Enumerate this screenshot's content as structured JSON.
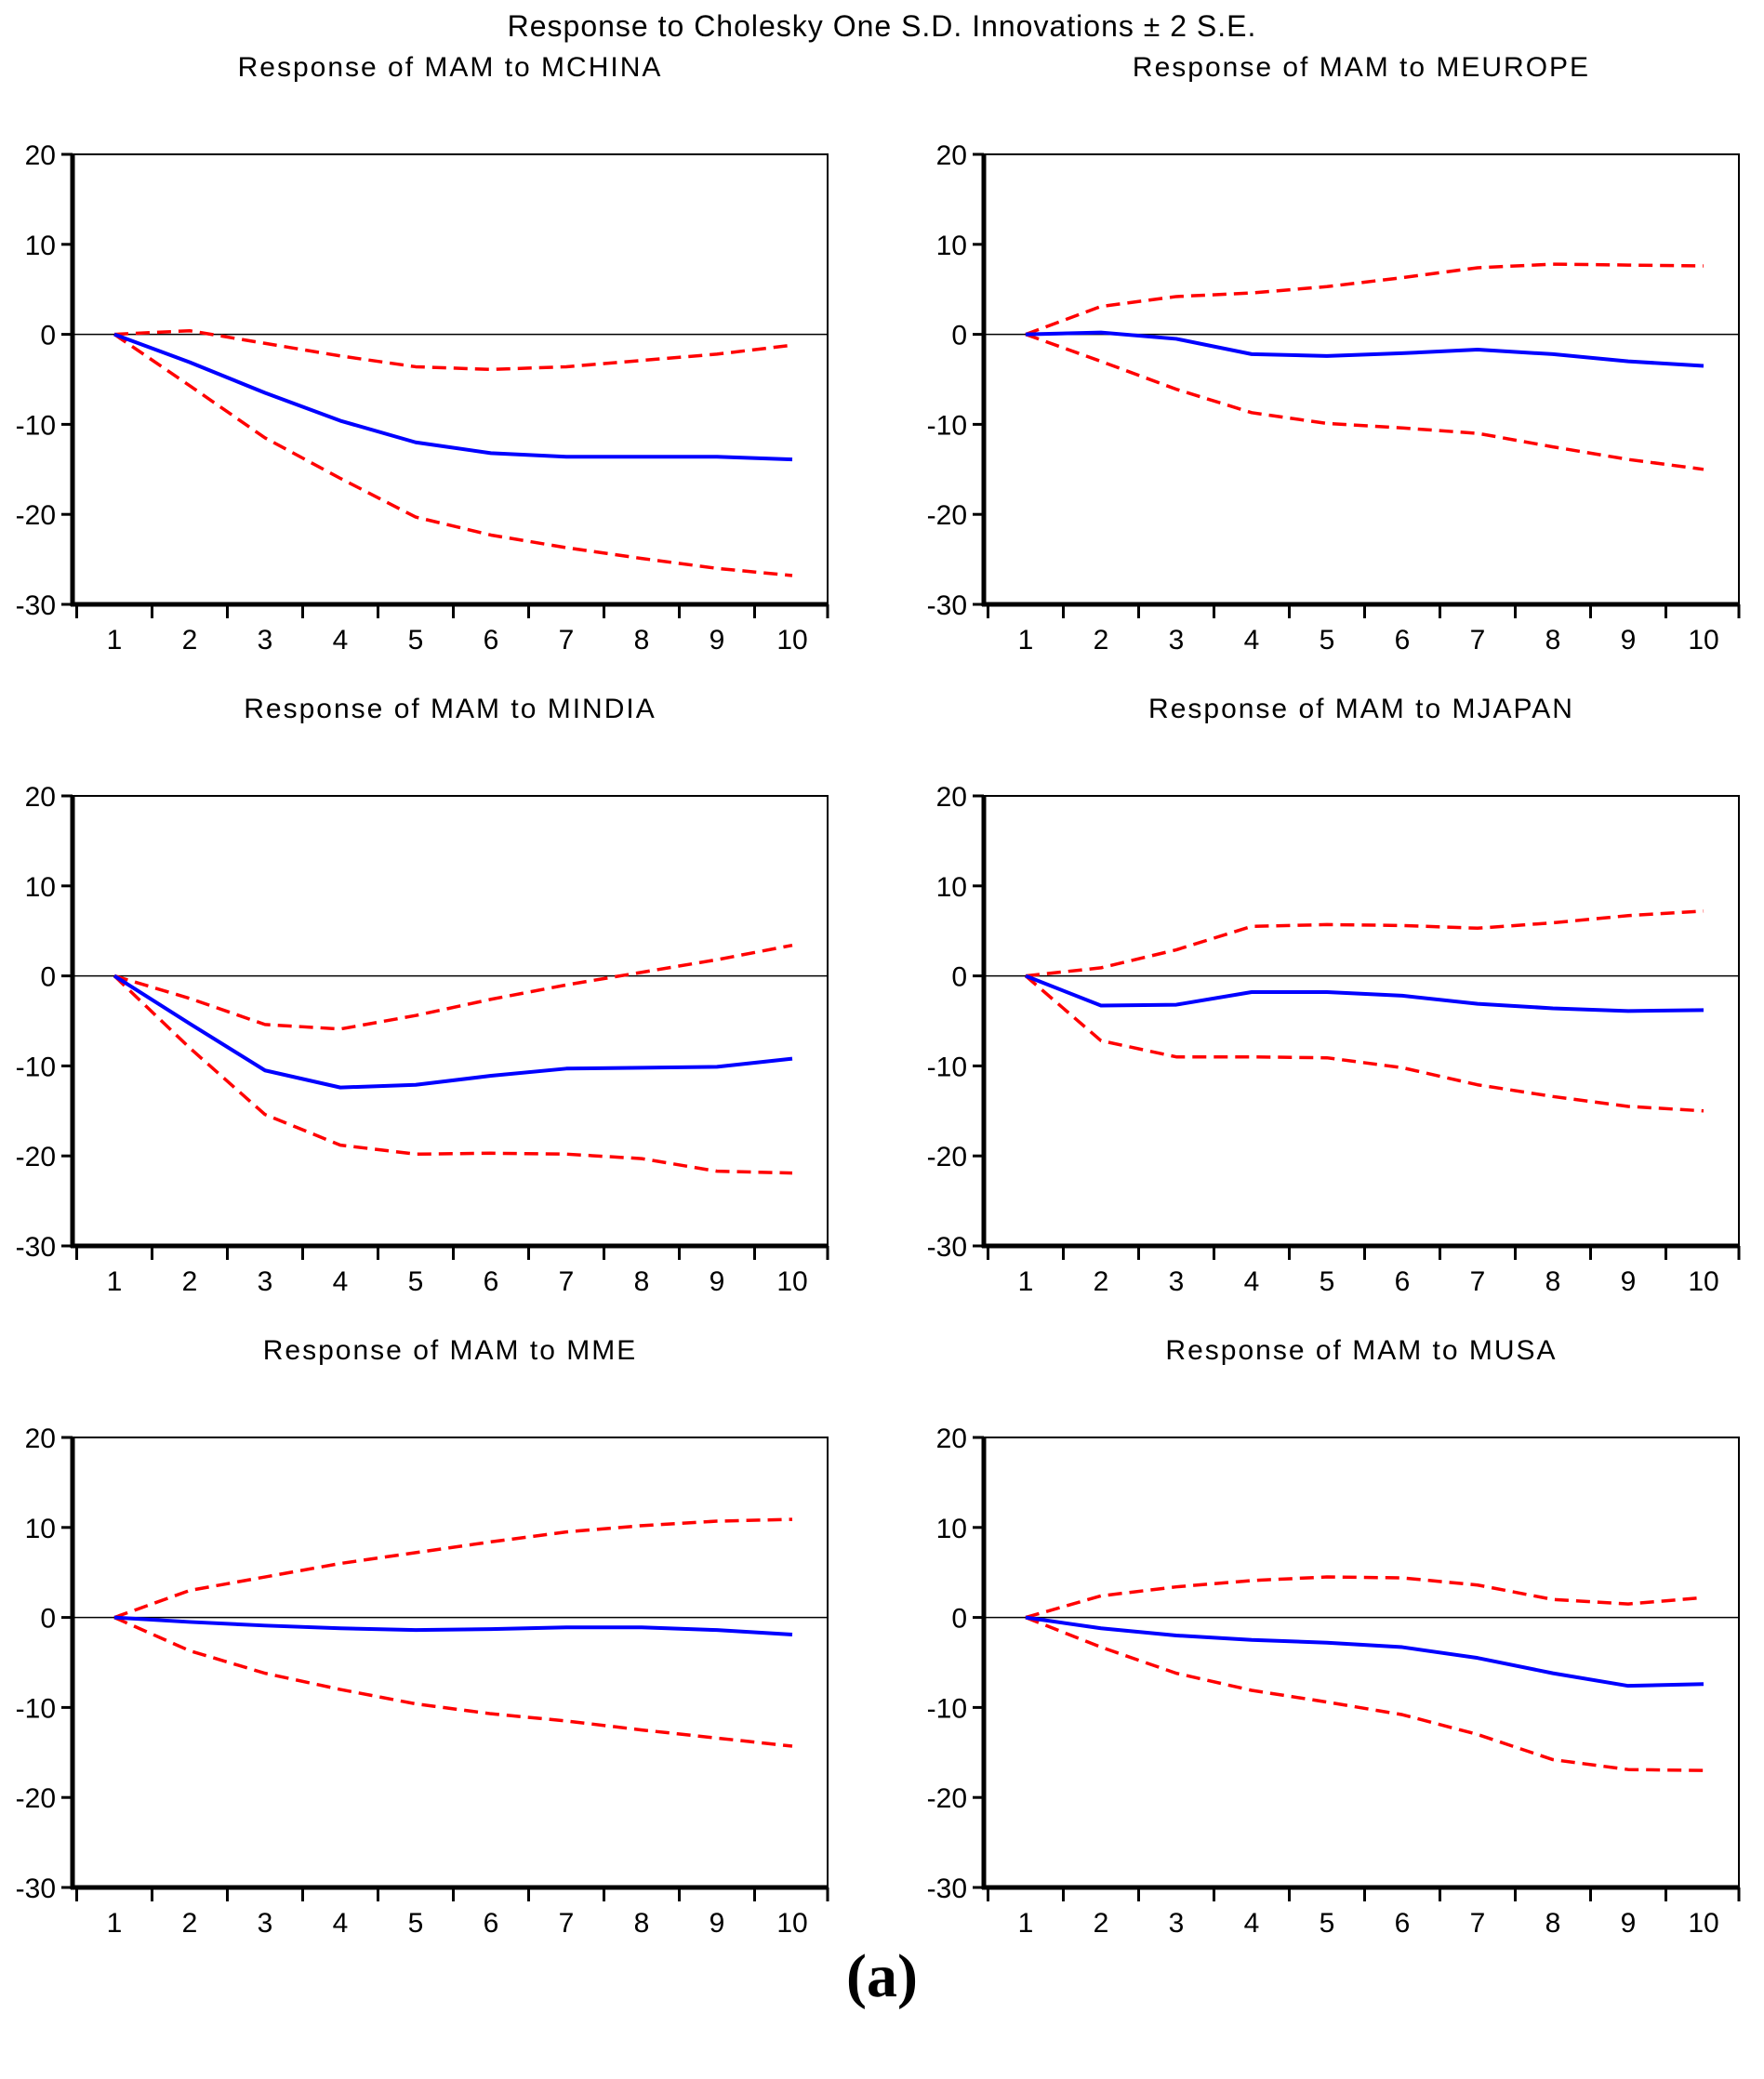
{
  "page": {
    "title": "Response to Cholesky One S.D. Innovations ± 2 S.E.",
    "caption": "(a)"
  },
  "colors": {
    "response": "#0000ff",
    "band": "#ff0000",
    "axis": "#000000",
    "background": "#ffffff"
  },
  "axes": {
    "x_ticks": [
      1,
      2,
      3,
      4,
      5,
      6,
      7,
      8,
      9,
      10
    ],
    "y_ticks": [
      20,
      10,
      0,
      -10,
      -20,
      -30
    ],
    "ylim": [
      -30,
      20
    ],
    "grid": "off",
    "legend": "none"
  },
  "chart_data": [
    {
      "type": "line",
      "title": "Response of MAM to MCHINA",
      "x": [
        1,
        2,
        3,
        4,
        5,
        6,
        7,
        8,
        9,
        10
      ],
      "ylim": [
        -30,
        20
      ],
      "series": [
        {
          "name": "response",
          "style": "solid-blue",
          "values": [
            0,
            -3.1,
            -6.5,
            -9.6,
            -12.0,
            -13.2,
            -13.6,
            -13.6,
            -13.6,
            -13.9
          ]
        },
        {
          "name": "upper_band",
          "style": "dashed-red",
          "values": [
            0,
            0.4,
            -1.0,
            -2.4,
            -3.6,
            -3.9,
            -3.6,
            -2.9,
            -2.2,
            -1.2
          ]
        },
        {
          "name": "lower_band",
          "style": "dashed-red",
          "values": [
            0,
            -5.7,
            -11.5,
            -16.0,
            -20.3,
            -22.3,
            -23.7,
            -24.9,
            -26.0,
            -26.8
          ]
        }
      ]
    },
    {
      "type": "line",
      "title": "Response of MAM to MEUROPE",
      "x": [
        1,
        2,
        3,
        4,
        5,
        6,
        7,
        8,
        9,
        10
      ],
      "ylim": [
        -30,
        20
      ],
      "series": [
        {
          "name": "response",
          "style": "solid-blue",
          "values": [
            0,
            0.2,
            -0.5,
            -2.2,
            -2.4,
            -2.1,
            -1.7,
            -2.2,
            -3.0,
            -3.5
          ]
        },
        {
          "name": "upper_band",
          "style": "dashed-red",
          "values": [
            0,
            3.1,
            4.2,
            4.6,
            5.3,
            6.3,
            7.4,
            7.8,
            7.7,
            7.6
          ]
        },
        {
          "name": "lower_band",
          "style": "dashed-red",
          "values": [
            0,
            -3.0,
            -6.1,
            -8.7,
            -9.9,
            -10.4,
            -11.0,
            -12.5,
            -13.9,
            -15.0
          ]
        }
      ]
    },
    {
      "type": "line",
      "title": "Response of MAM to MINDIA",
      "x": [
        1,
        2,
        3,
        4,
        5,
        6,
        7,
        8,
        9,
        10
      ],
      "ylim": [
        -30,
        20
      ],
      "series": [
        {
          "name": "response",
          "style": "solid-blue",
          "values": [
            0,
            -5.3,
            -10.5,
            -12.4,
            -12.1,
            -11.1,
            -10.3,
            -10.2,
            -10.1,
            -9.2
          ]
        },
        {
          "name": "upper_band",
          "style": "dashed-red",
          "values": [
            0,
            -2.5,
            -5.4,
            -5.9,
            -4.4,
            -2.6,
            -1.0,
            0.4,
            1.8,
            3.4
          ]
        },
        {
          "name": "lower_band",
          "style": "dashed-red",
          "values": [
            0,
            -8.0,
            -15.4,
            -18.8,
            -19.8,
            -19.7,
            -19.8,
            -20.3,
            -21.7,
            -21.9
          ]
        }
      ]
    },
    {
      "type": "line",
      "title": "Response of MAM to MJAPAN",
      "x": [
        1,
        2,
        3,
        4,
        5,
        6,
        7,
        8,
        9,
        10
      ],
      "ylim": [
        -30,
        20
      ],
      "series": [
        {
          "name": "response",
          "style": "solid-blue",
          "values": [
            0,
            -3.3,
            -3.2,
            -1.8,
            -1.8,
            -2.2,
            -3.1,
            -3.6,
            -3.9,
            -3.8
          ]
        },
        {
          "name": "upper_band",
          "style": "dashed-red",
          "values": [
            0,
            0.9,
            2.9,
            5.5,
            5.7,
            5.6,
            5.3,
            5.9,
            6.7,
            7.2
          ]
        },
        {
          "name": "lower_band",
          "style": "dashed-red",
          "values": [
            0,
            -7.2,
            -9.0,
            -9.0,
            -9.1,
            -10.2,
            -12.1,
            -13.4,
            -14.5,
            -15.0
          ]
        }
      ]
    },
    {
      "type": "line",
      "title": "Response of MAM to MME",
      "x": [
        1,
        2,
        3,
        4,
        5,
        6,
        7,
        8,
        9,
        10
      ],
      "ylim": [
        -30,
        20
      ],
      "series": [
        {
          "name": "response",
          "style": "solid-blue",
          "values": [
            0,
            -0.5,
            -0.9,
            -1.2,
            -1.4,
            -1.3,
            -1.1,
            -1.1,
            -1.4,
            -1.9
          ]
        },
        {
          "name": "upper_band",
          "style": "dashed-red",
          "values": [
            0,
            3.0,
            4.5,
            6.0,
            7.2,
            8.4,
            9.5,
            10.2,
            10.7,
            10.9
          ]
        },
        {
          "name": "lower_band",
          "style": "dashed-red",
          "values": [
            0,
            -3.7,
            -6.2,
            -8.0,
            -9.6,
            -10.7,
            -11.5,
            -12.5,
            -13.4,
            -14.3
          ]
        }
      ]
    },
    {
      "type": "line",
      "title": "Response of MAM to MUSA",
      "x": [
        1,
        2,
        3,
        4,
        5,
        6,
        7,
        8,
        9,
        10
      ],
      "ylim": [
        -30,
        20
      ],
      "series": [
        {
          "name": "response",
          "style": "solid-blue",
          "values": [
            0,
            -1.2,
            -2.0,
            -2.5,
            -2.8,
            -3.3,
            -4.5,
            -6.2,
            -7.6,
            -7.4
          ]
        },
        {
          "name": "upper_band",
          "style": "dashed-red",
          "values": [
            0,
            2.4,
            3.4,
            4.1,
            4.5,
            4.4,
            3.6,
            2.0,
            1.5,
            2.2
          ]
        },
        {
          "name": "lower_band",
          "style": "dashed-red",
          "values": [
            0,
            -3.3,
            -6.2,
            -8.1,
            -9.4,
            -10.8,
            -13.0,
            -15.8,
            -16.9,
            -17.0
          ]
        }
      ]
    }
  ]
}
